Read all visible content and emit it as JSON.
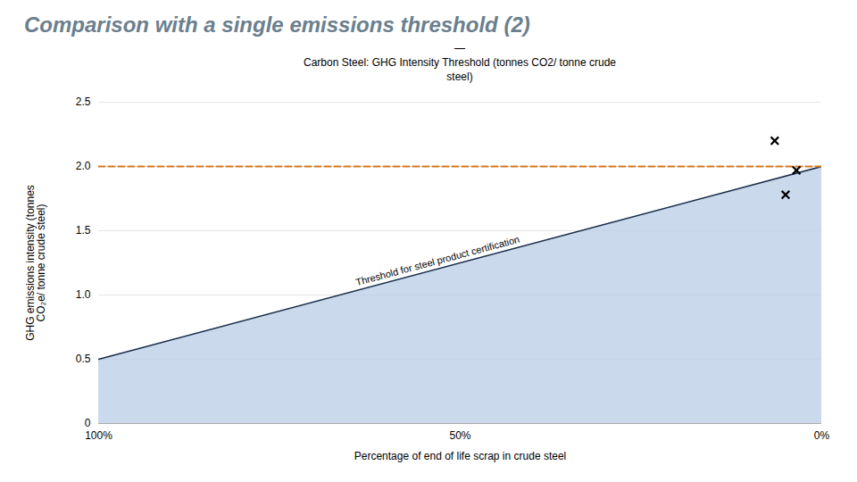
{
  "chart_data": {
    "type": "area",
    "title": "Comparison with a single emissions threshold (2)",
    "title_color": "#6b7f8e",
    "subtitle": "Carbon Steel: GHG Intensity Threshold (tonnes CO2/ tonne crude\nsteel)",
    "xlabel": "Percentage of end of life scrap in crude steel",
    "ylabel": "GHG emissions intensity (tonnes\nCO₂e/ tonne crude steel)",
    "xlim": [
      0,
      1
    ],
    "ylim": [
      0,
      2.5
    ],
    "xticks": [
      {
        "value": 0,
        "label": "100%"
      },
      {
        "value": 0.5,
        "label": "50%"
      },
      {
        "value": 1.0,
        "label": "0%"
      }
    ],
    "yticks": [
      0,
      0.5,
      {
        "value": 1.0,
        "label": "1.0"
      },
      1.5,
      {
        "value": 2.0,
        "label": "2.0"
      },
      2.5
    ],
    "grid": "y",
    "series": [
      {
        "type": "area",
        "x": [
          0,
          1.0
        ],
        "values": [
          0.5,
          2.0
        ],
        "color": "#b8cce4"
      },
      {
        "type": "line",
        "x": [
          0,
          1.0
        ],
        "values": [
          0.5,
          2.0
        ],
        "color": "#1a2e4a"
      },
      {
        "type": "line",
        "x": [
          0,
          1
        ],
        "values": [
          2.0,
          2.0
        ],
        "color": "#d4781e",
        "line_style": "dashed"
      },
      {
        "type": "scatter",
        "x": [
          0.935,
          0.965,
          0.95
        ],
        "values": [
          2.2,
          1.97,
          1.78
        ],
        "color": "black",
        "marker": "x"
      }
    ],
    "annotations": [
      {
        "text": "—"
      },
      {
        "text": "Threshold for steel product certification",
        "x": 0.47,
        "y": 1.22
      }
    ]
  }
}
